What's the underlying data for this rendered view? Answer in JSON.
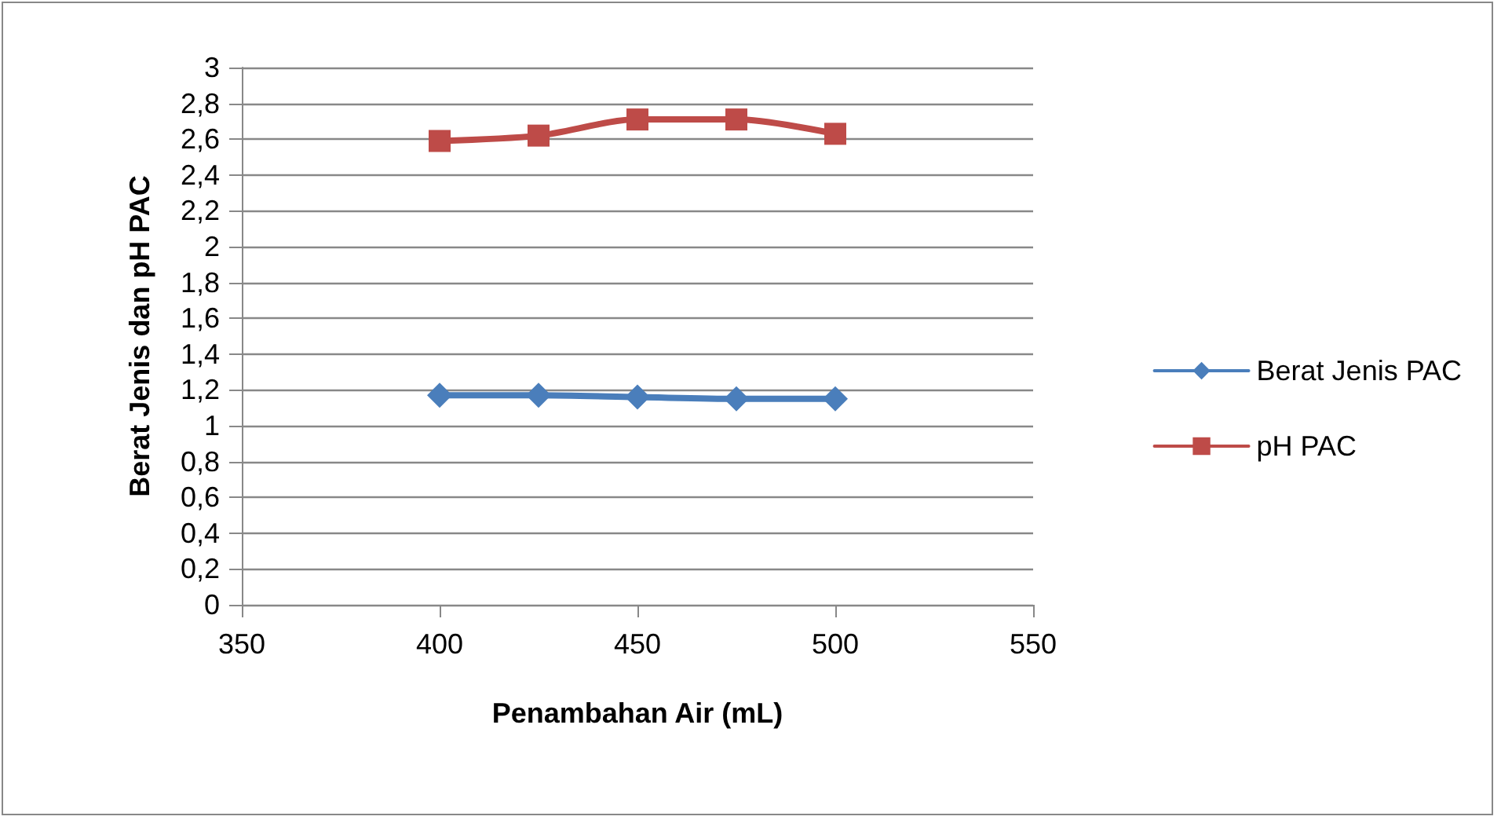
{
  "chart_data": {
    "type": "line",
    "xlabel": "Penambahan Air (mL)",
    "ylabel": "Berat Jenis dan pH PAC",
    "x": [
      400,
      425,
      450,
      475,
      500
    ],
    "series": [
      {
        "name": "Berat Jenis PAC",
        "color": "#4a7ebb",
        "marker": "diamond",
        "values": [
          1.17,
          1.17,
          1.16,
          1.15,
          1.15
        ]
      },
      {
        "name": "pH PAC",
        "color": "#be4b48",
        "marker": "square",
        "values": [
          2.59,
          2.62,
          2.71,
          2.71,
          2.63
        ]
      }
    ],
    "xlim": [
      350,
      550
    ],
    "xticks": [
      350,
      400,
      450,
      500,
      550
    ],
    "ylim": [
      0,
      3
    ],
    "yticks": [
      0,
      {
        "value": 0.2,
        "label": "0,2"
      },
      {
        "value": 0.4,
        "label": "0,4"
      },
      {
        "value": 0.6,
        "label": "0,6"
      },
      {
        "value": 0.8,
        "label": "0,8"
      },
      1,
      {
        "value": 1.2,
        "label": "1,2"
      },
      {
        "value": 1.4,
        "label": "1,4"
      },
      {
        "value": 1.6,
        "label": "1,6"
      },
      {
        "value": 1.8,
        "label": "1,8"
      },
      2,
      {
        "value": 2.2,
        "label": "2,2"
      },
      {
        "value": 2.4,
        "label": "2,4"
      },
      {
        "value": 2.6,
        "label": "2,6"
      },
      {
        "value": 2.8,
        "label": "2,8"
      },
      3
    ],
    "grid": "y",
    "legend": "right",
    "line_style": "solid"
  }
}
